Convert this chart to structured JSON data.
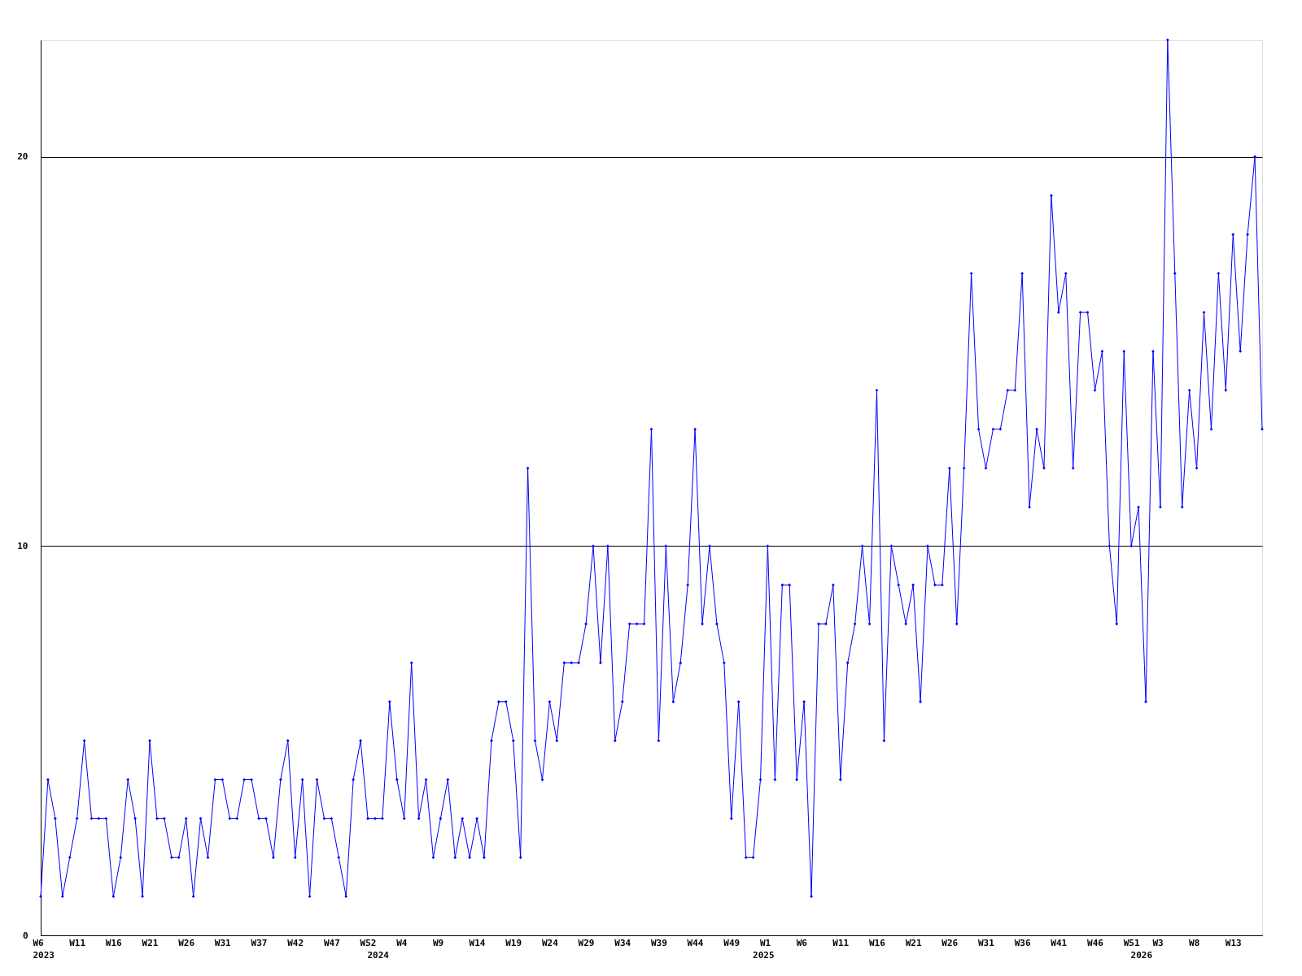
{
  "chart_data": {
    "type": "line",
    "categories": [
      "W6\n2023",
      null,
      null,
      null,
      null,
      "W11",
      null,
      null,
      null,
      null,
      "W16",
      null,
      null,
      null,
      null,
      "W21",
      null,
      null,
      null,
      null,
      "W26",
      null,
      null,
      null,
      null,
      "W31",
      null,
      null,
      null,
      null,
      "W37",
      null,
      null,
      null,
      null,
      "W42",
      null,
      null,
      null,
      null,
      "W47",
      null,
      null,
      null,
      null,
      "W52",
      "\n2024",
      null,
      null,
      null,
      "W4",
      null,
      null,
      null,
      null,
      "W9",
      null,
      null,
      null,
      null,
      "W14",
      null,
      null,
      null,
      null,
      "W19",
      null,
      null,
      null,
      null,
      "W24",
      null,
      null,
      null,
      null,
      "W29",
      null,
      null,
      null,
      null,
      "W34",
      null,
      null,
      null,
      null,
      "W39",
      null,
      null,
      null,
      null,
      "W44",
      null,
      null,
      null,
      null,
      "W49",
      null,
      null,
      null,
      "\n2025",
      "W1",
      null,
      null,
      null,
      null,
      "W6",
      null,
      null,
      null,
      null,
      "W11",
      null,
      null,
      null,
      null,
      "W16",
      null,
      null,
      null,
      null,
      "W21",
      null,
      null,
      null,
      null,
      "W26",
      null,
      null,
      null,
      null,
      "W31",
      null,
      null,
      null,
      null,
      "W36",
      null,
      null,
      null,
      null,
      "W41",
      null,
      null,
      null,
      null,
      "W46",
      null,
      null,
      null,
      null,
      "W51",
      "\n2026",
      null,
      null,
      "W3",
      null,
      null,
      null,
      null,
      "W8",
      null,
      null,
      null,
      null,
      "W13",
      null,
      null,
      null,
      null
    ],
    "series": [
      {
        "color": "#0000ff",
        "values": [
          1,
          4,
          3,
          1,
          2,
          3,
          5,
          3,
          3,
          3,
          1,
          2,
          4,
          3,
          1,
          5,
          3,
          3,
          2,
          2,
          3,
          1,
          3,
          2,
          4,
          4,
          3,
          3,
          4,
          4,
          3,
          3,
          2,
          4,
          5,
          2,
          4,
          1,
          4,
          3,
          3,
          2,
          1,
          4,
          5,
          3,
          3,
          3,
          6,
          4,
          3,
          7,
          3,
          4,
          2,
          3,
          4,
          2,
          3,
          2,
          3,
          2,
          5,
          6,
          6,
          5,
          2,
          12,
          5,
          4,
          6,
          5,
          7,
          7,
          7,
          8,
          10,
          7,
          10,
          5,
          6,
          8,
          8,
          8,
          13,
          5,
          10,
          6,
          7,
          9,
          13,
          8,
          10,
          8,
          7,
          3,
          6,
          2,
          2,
          4,
          10,
          4,
          9,
          9,
          4,
          6,
          1,
          8,
          8,
          9,
          4,
          7,
          8,
          10,
          8,
          14,
          5,
          10,
          9,
          8,
          9,
          6,
          10,
          9,
          9,
          12,
          8,
          12,
          17,
          13,
          12,
          13,
          13,
          14,
          14,
          17,
          11,
          13,
          12,
          19,
          16,
          17,
          12,
          16,
          16,
          14,
          15,
          10,
          8,
          15,
          10,
          11,
          6,
          15,
          11,
          23,
          17,
          11,
          14,
          12,
          16,
          13,
          17,
          14,
          18,
          15,
          18,
          20,
          13
        ]
      }
    ],
    "ylim": [
      0,
      23
    ],
    "yticks": [
      0,
      10,
      20
    ],
    "grid": "y",
    "legend": false,
    "marker": "diamond",
    "line_style": "solid"
  }
}
